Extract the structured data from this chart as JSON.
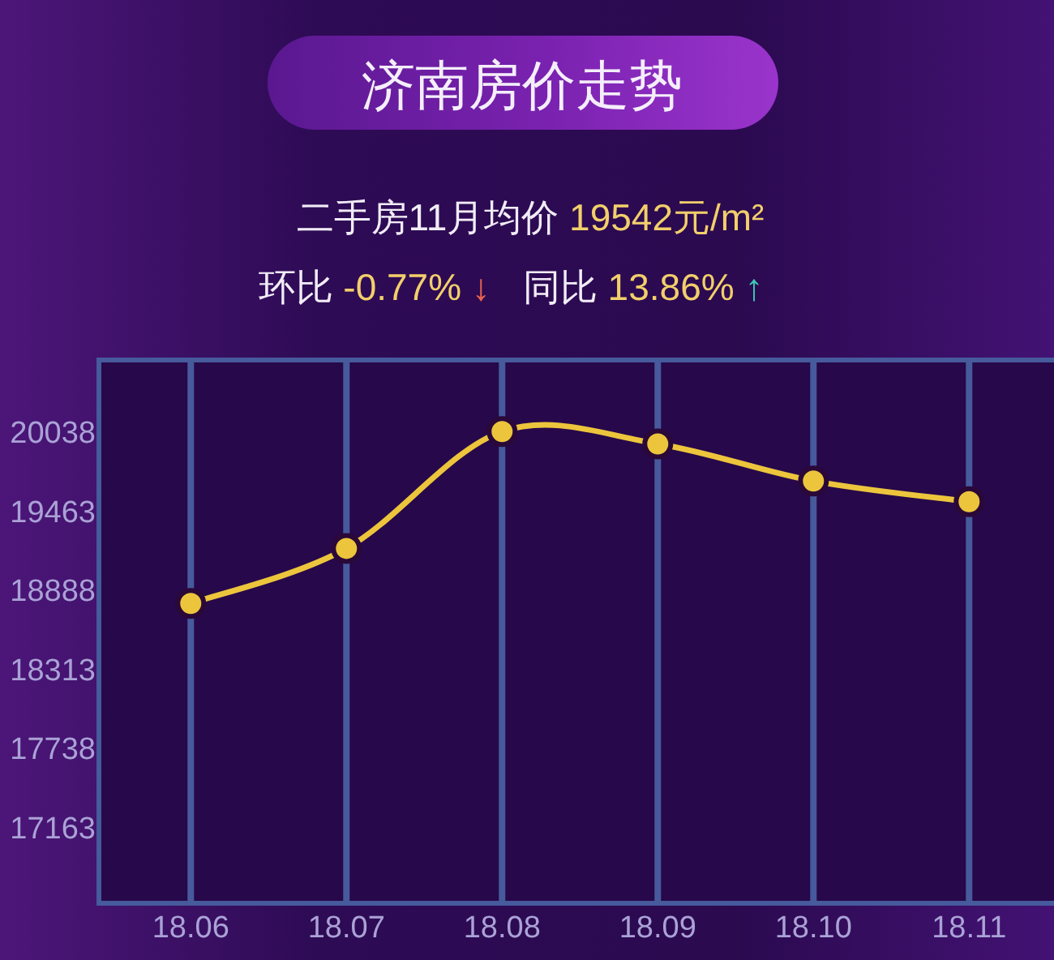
{
  "chart_data": {
    "type": "line",
    "title": "济南房价走势",
    "subtitle": "二手房11月均价 19542元/m²",
    "annotations": [
      "环比 -0.77% ↓",
      "同比 13.86% ↑"
    ],
    "categories": [
      "18.06",
      "18.07",
      "18.08",
      "18.09",
      "18.10",
      "18.11"
    ],
    "series": [
      {
        "color": "#ecc53c",
        "values": [
          18800,
          19200,
          20050,
          19960,
          19690,
          19540
        ]
      }
    ],
    "ylim": [
      16620,
      20570
    ],
    "yticks": [
      17163,
      17738,
      18313,
      18888,
      19463,
      20038
    ],
    "grid": "x",
    "marker": "circle",
    "line_style": "solid"
  }
}
